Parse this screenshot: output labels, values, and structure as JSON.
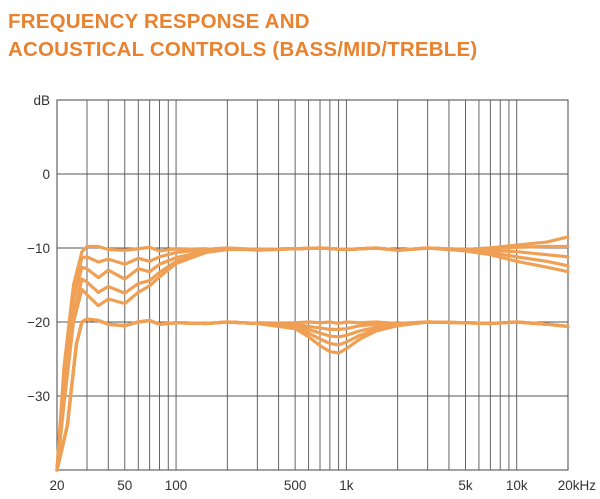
{
  "title_lines": [
    "FREQUENCY RESPONSE AND",
    "ACOUSTICAL CONTROLS (BASS/MID/TREBLE)"
  ],
  "colors": {
    "title": "#e8822e",
    "curve": "#f0a055",
    "grid": "#555555",
    "text": "#333333"
  },
  "chart_data": {
    "type": "line",
    "title": "FREQUENCY RESPONSE AND ACOUSTICAL CONTROLS (BASS/MID/TREBLE)",
    "ylabel": "dB",
    "x_scale": "log",
    "xlim": [
      20,
      20000
    ],
    "ylim": [
      -40,
      10
    ],
    "grid": true,
    "y_ticks": [
      {
        "value": 10,
        "label": "dB"
      },
      {
        "value": 0,
        "label": "0"
      },
      {
        "value": -10,
        "label": "−10"
      },
      {
        "value": -20,
        "label": "−20"
      },
      {
        "value": -30,
        "label": "−30"
      }
    ],
    "x_ticks": [
      {
        "value": 20,
        "label": "20"
      },
      {
        "value": 50,
        "label": "50"
      },
      {
        "value": 100,
        "label": "100"
      },
      {
        "value": 500,
        "label": "500"
      },
      {
        "value": 1000,
        "label": "1k"
      },
      {
        "value": 5000,
        "label": "5k"
      },
      {
        "value": 10000,
        "label": "10k"
      },
      {
        "value": 20000,
        "label": "20kHz"
      }
    ],
    "series": [
      {
        "x": [
          20,
          22,
          25,
          28,
          30,
          35,
          40,
          50,
          60,
          70,
          80,
          100,
          150,
          200,
          300,
          500,
          700,
          1000,
          1500,
          2000,
          3000,
          5000,
          7000,
          10000,
          15000,
          20000
        ],
        "y": [
          -40,
          -26,
          -15,
          -10.5,
          -9.8,
          -9.8,
          -10.2,
          -10.3,
          -10.1,
          -9.9,
          -10.4,
          -10.1,
          -10.2,
          -10,
          -10.3,
          -10.1,
          -10,
          -10.2,
          -10,
          -10.3,
          -10,
          -10.2,
          -10,
          -9.6,
          -9.2,
          -8.5
        ]
      },
      {
        "x": [
          20,
          22,
          25,
          28,
          30,
          35,
          40,
          50,
          60,
          70,
          80,
          100,
          150,
          200,
          300,
          500,
          700,
          1000,
          1500,
          2000,
          3000,
          5000,
          7000,
          10000,
          15000,
          20000
        ],
        "y": [
          -40,
          -27,
          -16,
          -11.3,
          -11.2,
          -11.9,
          -11.5,
          -12.2,
          -11.4,
          -11.8,
          -11.2,
          -10.6,
          -10.2,
          -10,
          -10.2,
          -10.1,
          -10,
          -10.2,
          -10,
          -10.3,
          -10,
          -10.2,
          -10,
          -9.9,
          -9.8,
          -9.8
        ]
      },
      {
        "x": [
          20,
          22,
          25,
          28,
          30,
          35,
          40,
          50,
          60,
          70,
          80,
          100,
          150,
          200,
          300,
          500,
          700,
          1000,
          1500,
          2000,
          3000,
          5000,
          7000,
          10000,
          15000,
          20000
        ],
        "y": [
          -40,
          -28,
          -17,
          -12.6,
          -12.8,
          -14,
          -13,
          -14.2,
          -12.8,
          -13.2,
          -12.2,
          -11.3,
          -10.4,
          -10.1,
          -10.2,
          -10.1,
          -10,
          -10.2,
          -10,
          -10.3,
          -10,
          -10.2,
          -10.3,
          -10.5,
          -10.9,
          -11.2
        ]
      },
      {
        "x": [
          20,
          22,
          25,
          28,
          30,
          35,
          40,
          50,
          60,
          70,
          80,
          100,
          150,
          200,
          300,
          500,
          700,
          1000,
          1500,
          2000,
          3000,
          5000,
          7000,
          10000,
          15000,
          20000
        ],
        "y": [
          -40,
          -30,
          -19,
          -14.2,
          -14.6,
          -16,
          -15.2,
          -16.1,
          -14.8,
          -14.4,
          -13.3,
          -11.8,
          -10.5,
          -10.1,
          -10.2,
          -10.1,
          -10,
          -10.2,
          -10,
          -10.3,
          -10,
          -10.3,
          -10.6,
          -11.2,
          -11.8,
          -12.4
        ]
      },
      {
        "x": [
          20,
          22,
          25,
          28,
          30,
          35,
          40,
          50,
          60,
          70,
          80,
          100,
          150,
          200,
          300,
          500,
          700,
          1000,
          1500,
          2000,
          3000,
          5000,
          7000,
          10000,
          15000,
          20000
        ],
        "y": [
          -40,
          -31,
          -20,
          -15.6,
          -16.3,
          -17.8,
          -16.9,
          -17.5,
          -16,
          -15.1,
          -13.9,
          -12.1,
          -10.6,
          -10.2,
          -10.2,
          -10.1,
          -10,
          -10.2,
          -10,
          -10.3,
          -10,
          -10.4,
          -10.9,
          -11.8,
          -12.6,
          -13.2
        ]
      },
      {
        "x": [
          20,
          23,
          26,
          28,
          30,
          35,
          40,
          50,
          60,
          70,
          80,
          100,
          150,
          200,
          300,
          500,
          600,
          700,
          800,
          900,
          1000,
          1200,
          1500,
          2000,
          3000,
          5000,
          7000,
          10000,
          15000,
          20000
        ],
        "y": [
          -40,
          -34,
          -23,
          -20,
          -19.6,
          -19.8,
          -20.3,
          -20.5,
          -20,
          -19.8,
          -20.3,
          -20.1,
          -20.2,
          -20,
          -20.2,
          -20.1,
          -20,
          -20.1,
          -20,
          -20.2,
          -20,
          -20.1,
          -20,
          -20.2,
          -20,
          -20.1,
          -20.2,
          -20,
          -20.3,
          -20.6
        ]
      },
      {
        "x": [
          20,
          23,
          26,
          28,
          30,
          35,
          40,
          50,
          60,
          70,
          80,
          100,
          150,
          200,
          300,
          500,
          600,
          700,
          800,
          900,
          1000,
          1200,
          1500,
          2000,
          3000,
          5000,
          7000,
          10000,
          15000,
          20000
        ],
        "y": [
          -40,
          -34,
          -23,
          -20,
          -19.6,
          -19.8,
          -20.3,
          -20.5,
          -20,
          -19.8,
          -20.3,
          -20.1,
          -20.2,
          -20,
          -20.2,
          -20.3,
          -20.6,
          -20.8,
          -21,
          -21,
          -20.9,
          -20.5,
          -20.3,
          -20.2,
          -20,
          -20.1,
          -20.2,
          -20,
          -20.3,
          -20.6
        ]
      },
      {
        "x": [
          20,
          23,
          26,
          28,
          30,
          35,
          40,
          50,
          60,
          70,
          80,
          100,
          150,
          200,
          300,
          500,
          600,
          700,
          800,
          900,
          1000,
          1200,
          1500,
          2000,
          3000,
          5000,
          7000,
          10000,
          15000,
          20000
        ],
        "y": [
          -40,
          -34,
          -23,
          -20,
          -19.6,
          -19.8,
          -20.3,
          -20.5,
          -20,
          -19.8,
          -20.3,
          -20.1,
          -20.2,
          -20,
          -20.2,
          -20.5,
          -21,
          -21.5,
          -21.9,
          -22,
          -21.8,
          -21.2,
          -20.7,
          -20.3,
          -20,
          -20.1,
          -20.2,
          -20,
          -20.3,
          -20.6
        ]
      },
      {
        "x": [
          20,
          23,
          26,
          28,
          30,
          35,
          40,
          50,
          60,
          70,
          80,
          100,
          150,
          200,
          300,
          500,
          600,
          700,
          800,
          900,
          1000,
          1200,
          1500,
          2000,
          3000,
          5000,
          7000,
          10000,
          15000,
          20000
        ],
        "y": [
          -40,
          -34,
          -23,
          -20,
          -19.6,
          -19.8,
          -20.3,
          -20.5,
          -20,
          -19.8,
          -20.3,
          -20.1,
          -20.2,
          -20,
          -20.2,
          -20.7,
          -21.5,
          -22.3,
          -22.9,
          -23.1,
          -22.7,
          -21.8,
          -21,
          -20.4,
          -20,
          -20.1,
          -20.2,
          -20,
          -20.3,
          -20.6
        ]
      },
      {
        "x": [
          20,
          23,
          26,
          28,
          30,
          35,
          40,
          50,
          60,
          70,
          80,
          100,
          150,
          200,
          300,
          500,
          600,
          700,
          800,
          900,
          1000,
          1200,
          1500,
          2000,
          3000,
          5000,
          7000,
          10000,
          15000,
          20000
        ],
        "y": [
          -40,
          -34,
          -23,
          -20,
          -19.6,
          -19.8,
          -20.3,
          -20.5,
          -20,
          -19.8,
          -20.3,
          -20.1,
          -20.2,
          -20,
          -20.2,
          -20.9,
          -22,
          -23.2,
          -24,
          -24.2,
          -23.6,
          -22.3,
          -21.2,
          -20.5,
          -20,
          -20.1,
          -20.2,
          -20,
          -20.3,
          -20.6
        ]
      }
    ]
  }
}
